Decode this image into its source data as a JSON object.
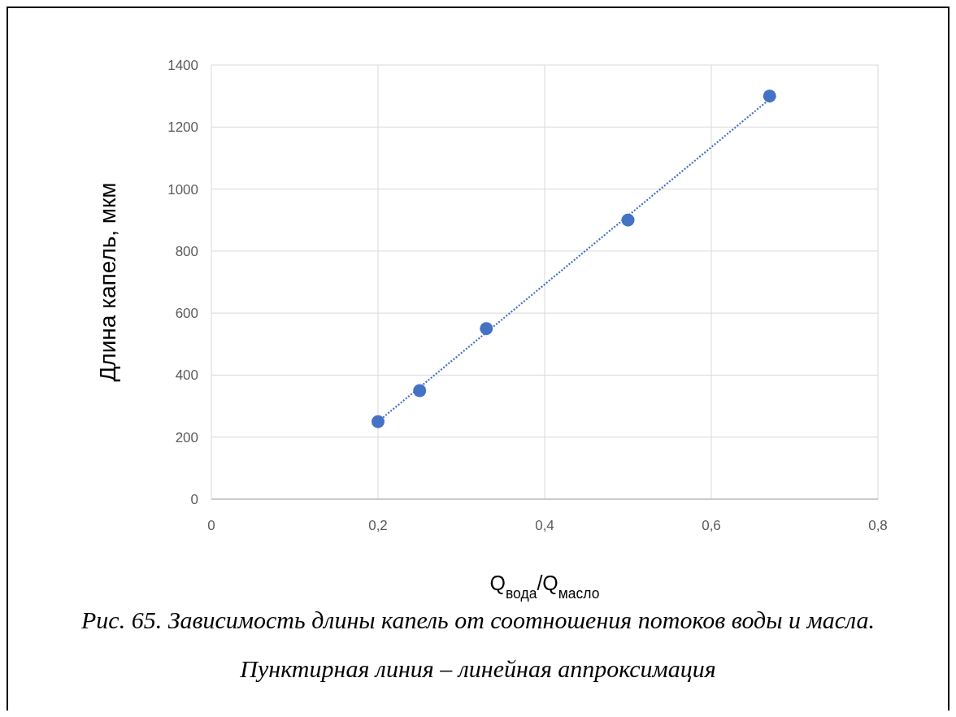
{
  "chart_data": {
    "type": "scatter",
    "xlabel": "Q$_{вода}$/Q$_{масло}$",
    "ylabel": "Длина капель, мкм",
    "annotations": [
      "Рис. 65. Зависимость длины капель от соотношения потоков воды и масла. Пунктирная линия – линейная аппроксимация"
    ],
    "x": [
      0.2,
      0.25,
      0.33,
      0.5,
      0.67
    ],
    "series": [
      {
        "color": "#4472c4",
        "marker": "circle",
        "values": [
          250,
          350,
          550,
          900,
          1300
        ]
      },
      {
        "type": "line",
        "color": "#4472c4",
        "line_style": "dotted",
        "marker": "none",
        "x": [
          0.2,
          0.67
        ],
        "values": [
          250,
          1290
        ]
      }
    ],
    "xlim": [
      0,
      0.8
    ],
    "xticks": [
      {
        "value": 0,
        "label": "0"
      },
      {
        "value": 0.2,
        "label": "0,2"
      },
      {
        "value": 0.4,
        "label": "0,4"
      },
      {
        "value": 0.6,
        "label": "0,6"
      },
      {
        "value": 0.8,
        "label": "0,8"
      }
    ],
    "ylim": [
      0,
      1400
    ],
    "yticks": [
      0,
      200,
      400,
      600,
      800,
      1000,
      1200,
      1400
    ],
    "grid": true
  }
}
